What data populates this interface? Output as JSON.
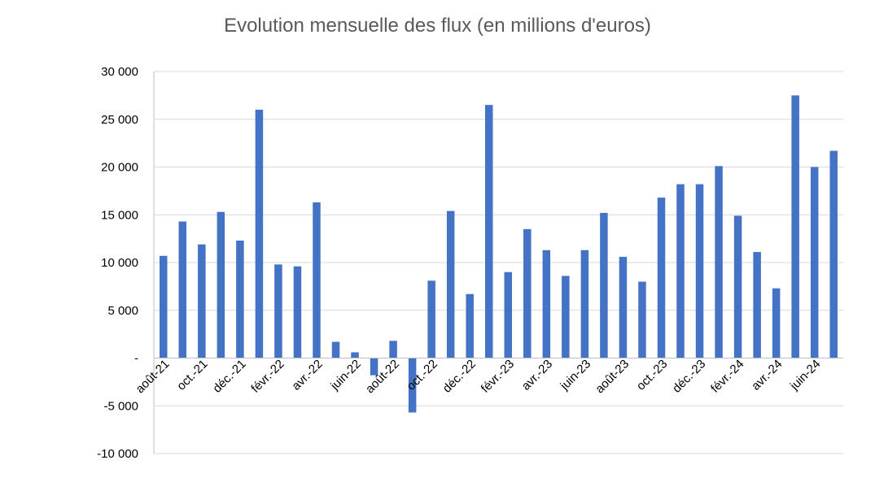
{
  "chart_data": {
    "type": "bar",
    "title": "Evolution mensuelle des flux (en millions d'euros)",
    "xlabel": "",
    "ylabel": "",
    "ylim": [
      -10000,
      30000
    ],
    "yticks": [
      30000,
      25000,
      20000,
      15000,
      10000,
      5000,
      0,
      -5000,
      -10000
    ],
    "ytick_labels": [
      "30 000",
      "25 000",
      "20 000",
      "15 000",
      "10 000",
      "5 000",
      "-",
      "-5 000",
      "-10 000"
    ],
    "grid": true,
    "bar_color": "#4472c4",
    "categories": [
      "août-21",
      "sept.-21",
      "oct.-21",
      "nov.-21",
      "déc.-21",
      "janv.-22",
      "févr.-22",
      "mars-22",
      "avr.-22",
      "mai-22",
      "juin-22",
      "juil.-22",
      "août-22",
      "sept.-22",
      "oct.-22",
      "nov.-22",
      "déc.-22",
      "janv.-23",
      "févr.-23",
      "mars-23",
      "avr.-23",
      "mai-23",
      "juin-23",
      "juil.-23",
      "août-23",
      "sept.-23",
      "oct.-23",
      "nov.-23",
      "déc.-23",
      "janv.-24",
      "févr.-24",
      "mars-24",
      "avr.-24",
      "mai-24",
      "juin-24",
      "juil.-24"
    ],
    "visible_x_labels": [
      "août-21",
      "oct.-21",
      "déc.-21",
      "févr.-22",
      "avr.-22",
      "juin-22",
      "août-22",
      "oct.-22",
      "déc.-22",
      "févr.-23",
      "avr.-23",
      "juin-23",
      "août-23",
      "oct.-23",
      "déc.-23",
      "févr.-24",
      "avr.-24",
      "juin-24"
    ],
    "values": [
      10700,
      14300,
      11900,
      15300,
      12300,
      26000,
      9800,
      9600,
      16300,
      1700,
      600,
      -1800,
      1800,
      -5700,
      8100,
      15400,
      6700,
      26500,
      9000,
      13500,
      11300,
      8600,
      11300,
      15200,
      10600,
      8000,
      16800,
      18200,
      18200,
      20100,
      14900,
      11100,
      7300,
      27500,
      20000,
      21700
    ]
  }
}
